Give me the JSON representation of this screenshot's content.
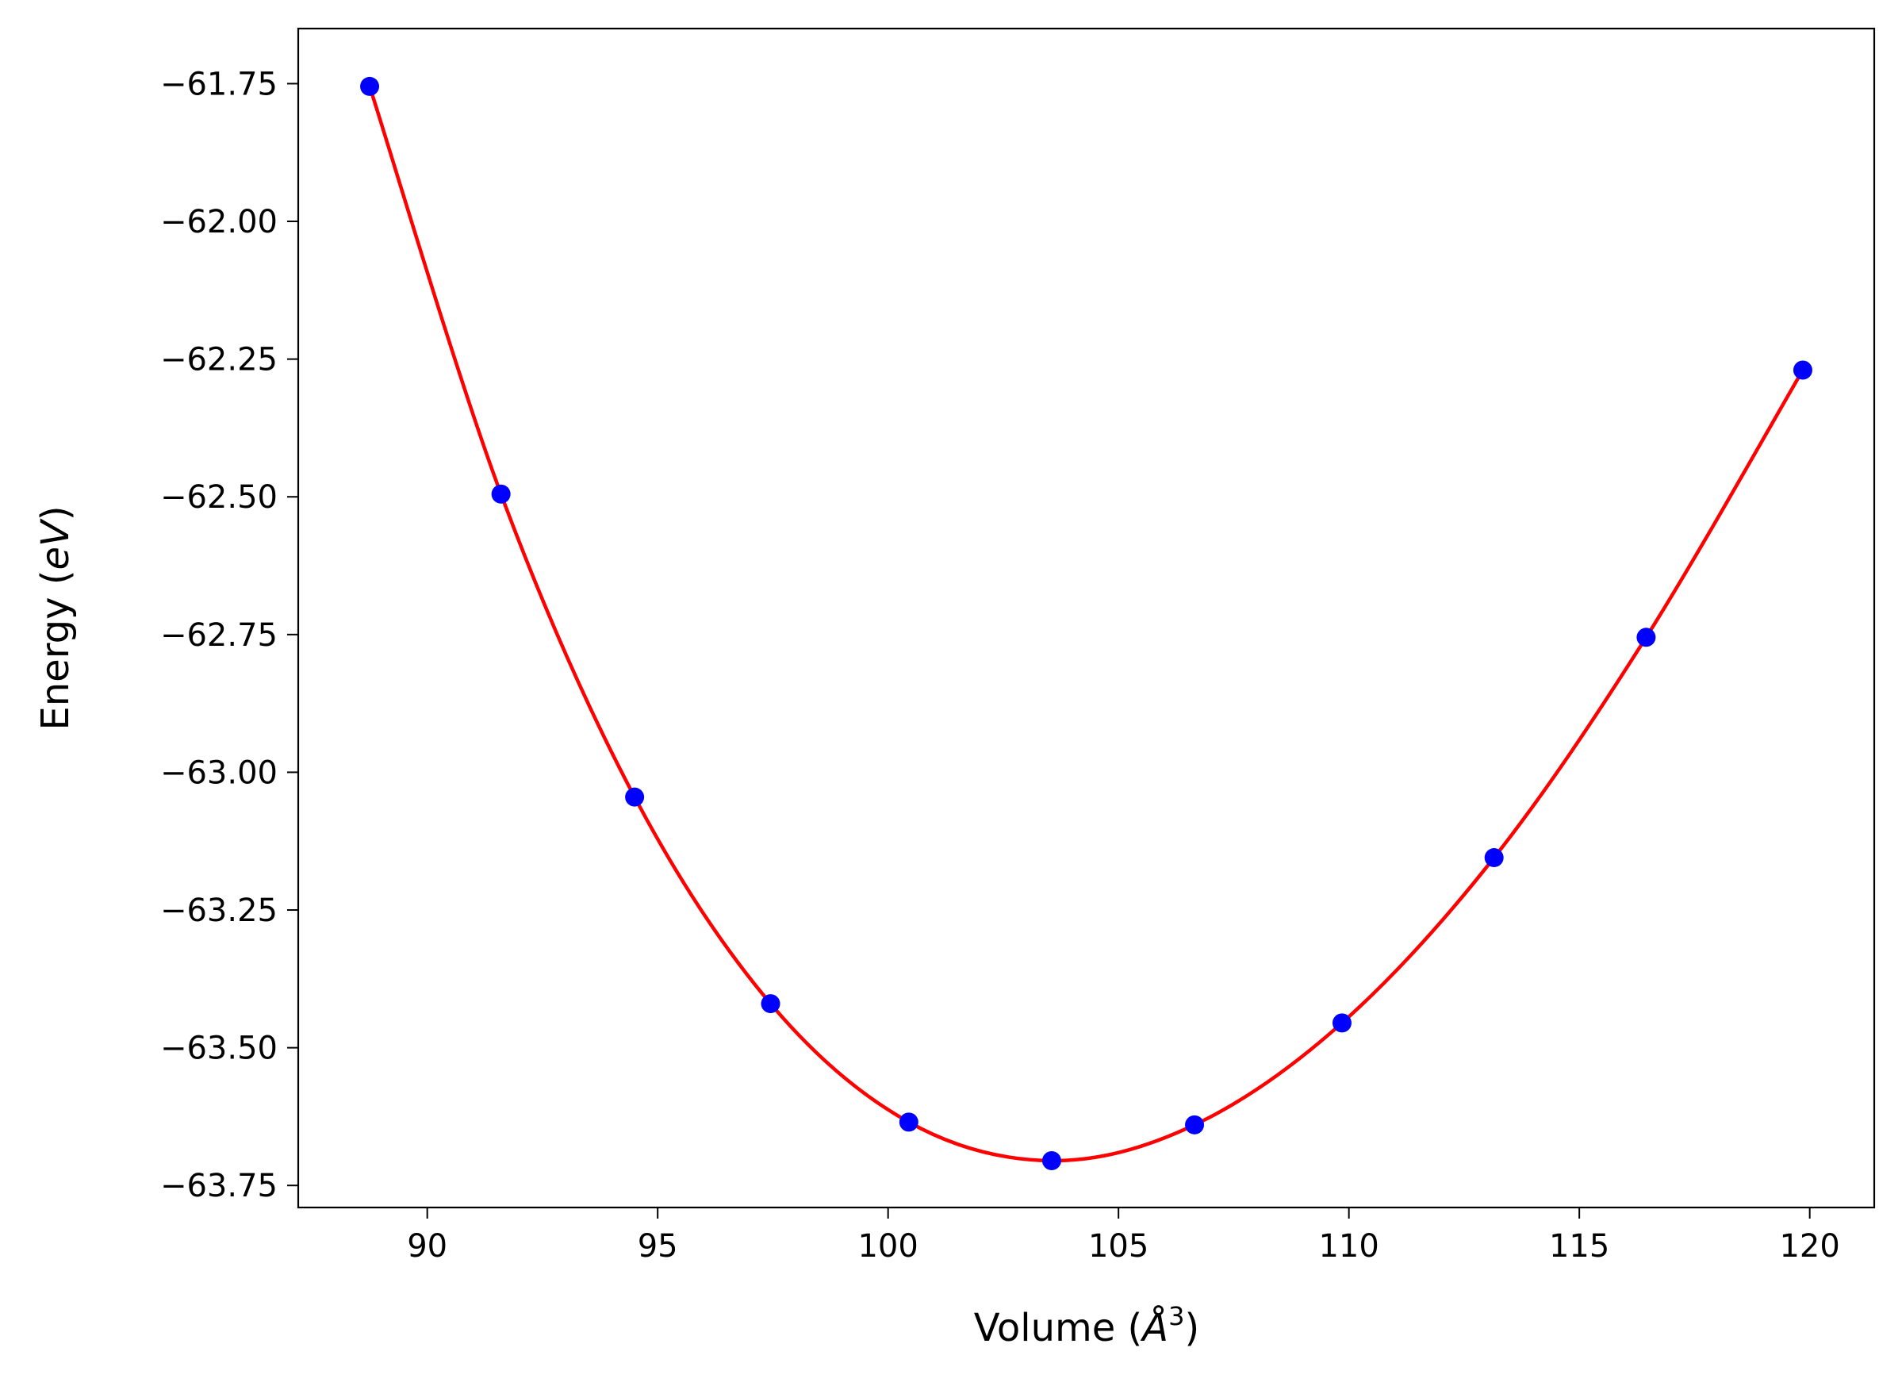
{
  "chart_data": {
    "type": "line",
    "title": "",
    "xlabel_main": "Volume (",
    "xlabel_unit": "Å",
    "xlabel_power": "3",
    "xlabel_close": ")",
    "ylabel_main": "Energy (",
    "ylabel_unit": "eV",
    "ylabel_close": ")",
    "xlim": [
      87.2,
      121.4
    ],
    "ylim": [
      -63.79,
      -61.65
    ],
    "xticks": [
      90,
      95,
      100,
      105,
      110,
      115,
      120
    ],
    "xtick_labels": [
      "90",
      "95",
      "100",
      "105",
      "110",
      "115",
      "120"
    ],
    "yticks": [
      -61.75,
      -62.0,
      -62.25,
      -62.5,
      -62.75,
      -63.0,
      -63.25,
      -63.5,
      -63.75
    ],
    "ytick_labels": [
      "−61.75",
      "−62.00",
      "−62.25",
      "−62.50",
      "−62.75",
      "−63.00",
      "−63.25",
      "−63.50",
      "−63.75"
    ],
    "grid": false,
    "series": [
      {
        "kind": "scatter",
        "color": "#0000ff",
        "x": [
          88.75,
          91.6,
          94.5,
          97.45,
          100.45,
          103.55,
          106.65,
          109.85,
          113.15,
          116.45,
          119.85
        ],
        "y": [
          -61.755,
          -62.495,
          -63.045,
          -63.42,
          -63.635,
          -63.705,
          -63.64,
          -63.455,
          -63.155,
          -62.755,
          -62.27
        ]
      },
      {
        "kind": "fit",
        "color": "#ff0000",
        "x": [
          88.75,
          91.6,
          94.5,
          97.45,
          100.45,
          103.55,
          106.65,
          109.85,
          113.15,
          116.45,
          119.85
        ],
        "y": [
          -61.755,
          -62.495,
          -63.045,
          -63.42,
          -63.635,
          -63.705,
          -63.64,
          -63.455,
          -63.155,
          -62.755,
          -62.27
        ]
      }
    ]
  }
}
